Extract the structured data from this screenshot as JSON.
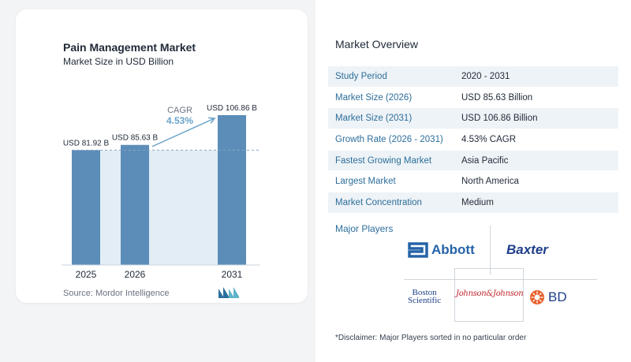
{
  "chart": {
    "title": "Pain Management Market",
    "subtitle": "Market Size in USD Billion",
    "source": "Source:  Mordor Intelligence",
    "cagr_label": "CAGR",
    "cagr_value": "4.53%"
  },
  "chart_data": {
    "type": "bar",
    "title": "Pain Management Market",
    "subtitle": "Market Size in USD Billion",
    "categories": [
      "2025",
      "2026",
      "2031"
    ],
    "values": [
      81.92,
      85.63,
      106.86
    ],
    "data_labels": [
      "USD 81.92 B",
      "USD 85.63 B",
      "USD 106.86 B"
    ],
    "ylim": [
      0,
      106.86
    ],
    "annotation": {
      "label": "CAGR",
      "value": "4.53%"
    },
    "bar_color": "#5b8db8",
    "grid": false
  },
  "overview": {
    "title": "Market Overview",
    "rows": [
      {
        "label": "Study Period",
        "value": "2020 - 2031"
      },
      {
        "label": "Market Size (2026)",
        "value": "USD 85.63 Billion"
      },
      {
        "label": "Market Size (2031)",
        "value": "USD 106.86 Billion"
      },
      {
        "label": "Growth Rate (2026 - 2031)",
        "value": "4.53% CAGR"
      },
      {
        "label": "Fastest Growing Market",
        "value": "Asia Pacific"
      },
      {
        "label": "Largest Market",
        "value": "North America"
      },
      {
        "label": "Market Concentration",
        "value": "Medium"
      }
    ]
  },
  "players": {
    "title": "Major Players",
    "abbott": "Abbott",
    "baxter": "Baxter",
    "boston_line1": "Boston",
    "boston_line2": "Scientific",
    "jnj": "Johnson&Johnson",
    "bd": "BD"
  },
  "disclaimer": "*Disclaimer: Major Players sorted in no particular order",
  "colors": {
    "bar": "#5b8db8",
    "accent": "#2c6e9b",
    "cagr": "#6aa3c9"
  }
}
